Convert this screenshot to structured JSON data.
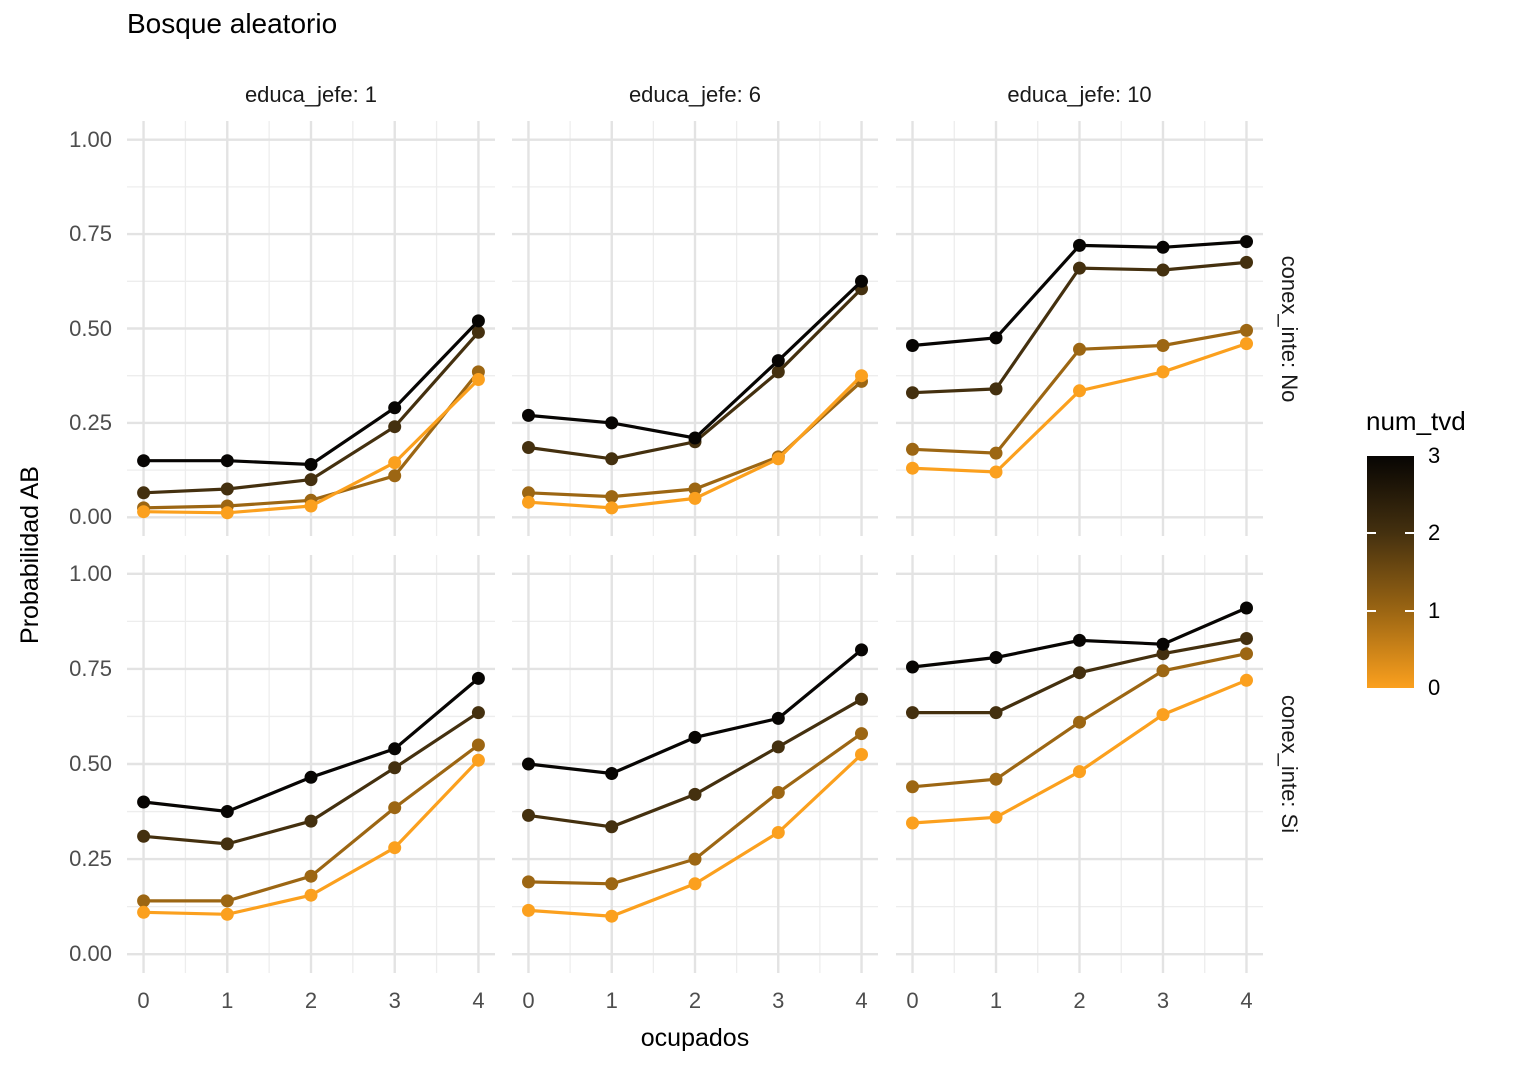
{
  "title": "Bosque aleatorio",
  "axes": {
    "x_label": "ocupados",
    "y_label": "Probabilidad AB",
    "x_ticks": [
      {
        "label": "0",
        "value": 0
      },
      {
        "label": "1",
        "value": 1
      },
      {
        "label": "2",
        "value": 2
      },
      {
        "label": "3",
        "value": 3
      },
      {
        "label": "4",
        "value": 4
      }
    ],
    "y_ticks": [
      {
        "label": "1.00",
        "value": 1.0
      },
      {
        "label": "0.75",
        "value": 0.75
      },
      {
        "label": "0.50",
        "value": 0.5
      },
      {
        "label": "0.25",
        "value": 0.25
      },
      {
        "label": "0.00",
        "value": 0.0
      }
    ]
  },
  "facets": {
    "cols": [
      {
        "label": "educa_jefe: 1"
      },
      {
        "label": "educa_jefe: 6"
      },
      {
        "label": "educa_jefe: 10"
      }
    ],
    "rows": [
      {
        "label": "conex_inte: No"
      },
      {
        "label": "conex_inte: Si"
      }
    ]
  },
  "legend": {
    "title": "num_tvd",
    "ticks": [
      {
        "label": "3",
        "value": 3
      },
      {
        "label": "2",
        "value": 2
      },
      {
        "label": "1",
        "value": 1
      },
      {
        "label": "0",
        "value": 0
      }
    ]
  },
  "colors": {
    "num_tvd_3": "#070503",
    "num_tvd_2": "#44300f",
    "num_tvd_1": "#9c6613",
    "num_tvd_0": "#fba01e",
    "grid_major": "#e3e3e3",
    "grid_minor": "#ededed",
    "axis_text": "#4d4d4d"
  },
  "chart_data": {
    "type": "line",
    "title": "Bosque aleatorio",
    "xlabel": "ocupados",
    "ylabel": "Probabilidad AB",
    "x": [
      0,
      1,
      2,
      3,
      4
    ],
    "ylim": [
      0,
      1
    ],
    "grid": true,
    "legend_position": "right",
    "color_variable": "num_tvd",
    "color_levels": [
      0,
      1,
      2,
      3
    ],
    "color_scale": {
      "low_value": 0,
      "low_color": "#fba01e",
      "high_value": 3,
      "high_color": "#070503"
    },
    "facet": {
      "col_variable": "educa_jefe",
      "col_values": [
        "1",
        "6",
        "10"
      ],
      "row_variable": "conex_inte",
      "row_values": [
        "No",
        "Si"
      ]
    },
    "panels": [
      {
        "row": "No",
        "col": "1",
        "series": [
          {
            "num_tvd": 3,
            "values": [
              0.15,
              0.15,
              0.14,
              0.29,
              0.52
            ]
          },
          {
            "num_tvd": 2,
            "values": [
              0.065,
              0.075,
              0.1,
              0.24,
              0.49
            ]
          },
          {
            "num_tvd": 1,
            "values": [
              0.025,
              0.03,
              0.045,
              0.11,
              0.385
            ]
          },
          {
            "num_tvd": 0,
            "values": [
              0.015,
              0.012,
              0.03,
              0.145,
              0.365
            ]
          }
        ]
      },
      {
        "row": "No",
        "col": "6",
        "series": [
          {
            "num_tvd": 3,
            "values": [
              0.27,
              0.25,
              0.21,
              0.415,
              0.625
            ]
          },
          {
            "num_tvd": 2,
            "values": [
              0.185,
              0.155,
              0.2,
              0.385,
              0.605
            ]
          },
          {
            "num_tvd": 1,
            "values": [
              0.065,
              0.055,
              0.075,
              0.16,
              0.36
            ]
          },
          {
            "num_tvd": 0,
            "values": [
              0.04,
              0.025,
              0.05,
              0.155,
              0.375
            ]
          }
        ]
      },
      {
        "row": "No",
        "col": "10",
        "series": [
          {
            "num_tvd": 3,
            "values": [
              0.455,
              0.475,
              0.72,
              0.715,
              0.73
            ]
          },
          {
            "num_tvd": 2,
            "values": [
              0.33,
              0.34,
              0.66,
              0.655,
              0.675
            ]
          },
          {
            "num_tvd": 1,
            "values": [
              0.18,
              0.17,
              0.445,
              0.455,
              0.495
            ]
          },
          {
            "num_tvd": 0,
            "values": [
              0.13,
              0.12,
              0.335,
              0.385,
              0.46
            ]
          }
        ]
      },
      {
        "row": "Si",
        "col": "1",
        "series": [
          {
            "num_tvd": 3,
            "values": [
              0.4,
              0.375,
              0.465,
              0.54,
              0.725
            ]
          },
          {
            "num_tvd": 2,
            "values": [
              0.31,
              0.29,
              0.35,
              0.49,
              0.635
            ]
          },
          {
            "num_tvd": 1,
            "values": [
              0.14,
              0.14,
              0.205,
              0.385,
              0.55
            ]
          },
          {
            "num_tvd": 0,
            "values": [
              0.11,
              0.105,
              0.155,
              0.28,
              0.51
            ]
          }
        ]
      },
      {
        "row": "Si",
        "col": "6",
        "series": [
          {
            "num_tvd": 3,
            "values": [
              0.5,
              0.475,
              0.57,
              0.62,
              0.8
            ]
          },
          {
            "num_tvd": 2,
            "values": [
              0.365,
              0.335,
              0.42,
              0.545,
              0.67
            ]
          },
          {
            "num_tvd": 1,
            "values": [
              0.19,
              0.185,
              0.25,
              0.425,
              0.58
            ]
          },
          {
            "num_tvd": 0,
            "values": [
              0.115,
              0.1,
              0.185,
              0.32,
              0.525
            ]
          }
        ]
      },
      {
        "row": "Si",
        "col": "10",
        "series": [
          {
            "num_tvd": 3,
            "values": [
              0.755,
              0.78,
              0.825,
              0.815,
              0.91
            ]
          },
          {
            "num_tvd": 2,
            "values": [
              0.635,
              0.635,
              0.74,
              0.79,
              0.83
            ]
          },
          {
            "num_tvd": 1,
            "values": [
              0.44,
              0.46,
              0.61,
              0.745,
              0.79
            ]
          },
          {
            "num_tvd": 0,
            "values": [
              0.345,
              0.36,
              0.48,
              0.63,
              0.72
            ]
          }
        ]
      }
    ]
  }
}
